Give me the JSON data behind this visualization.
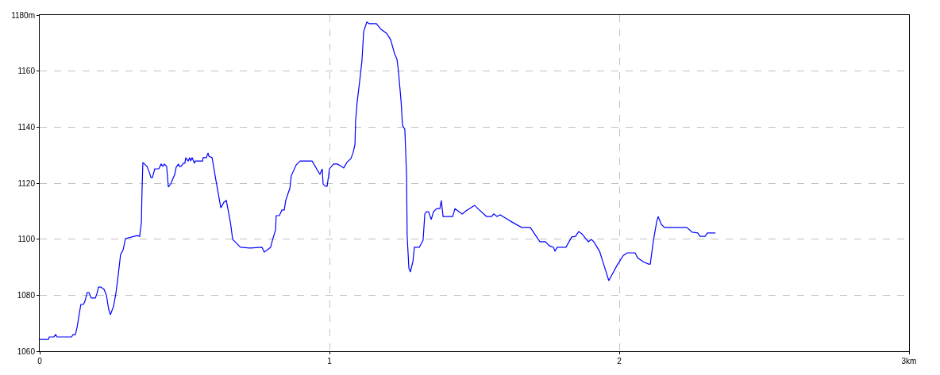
{
  "chart_data": {
    "type": "line",
    "x": [
      0,
      0.03,
      0.033,
      0.049,
      0.055,
      0.06,
      0.11,
      0.115,
      0.123,
      0.129,
      0.137,
      0.142,
      0.151,
      0.156,
      0.164,
      0.17,
      0.178,
      0.192,
      0.197,
      0.203,
      0.211,
      0.222,
      0.23,
      0.238,
      0.244,
      0.255,
      0.263,
      0.271,
      0.279,
      0.288,
      0.296,
      0.326,
      0.337,
      0.345,
      0.351,
      0.353,
      0.356,
      0.37,
      0.378,
      0.384,
      0.389,
      0.397,
      0.411,
      0.419,
      0.425,
      0.43,
      0.438,
      0.444,
      0.452,
      0.466,
      0.471,
      0.479,
      0.482,
      0.488,
      0.496,
      0.501,
      0.504,
      0.512,
      0.518,
      0.521,
      0.526,
      0.534,
      0.537,
      0.562,
      0.564,
      0.575,
      0.581,
      0.584,
      0.595,
      0.608,
      0.625,
      0.636,
      0.644,
      0.658,
      0.666,
      0.674,
      0.693,
      0.726,
      0.767,
      0.775,
      0.786,
      0.797,
      0.803,
      0.814,
      0.816,
      0.827,
      0.836,
      0.844,
      0.849,
      0.858,
      0.863,
      0.868,
      0.885,
      0.899,
      0.94,
      0.967,
      0.975,
      0.978,
      0.986,
      0.992,
      1.0,
      1.014,
      1.027,
      1.041,
      1.049,
      1.06,
      1.074,
      1.082,
      1.088,
      1.09,
      1.096,
      1.104,
      1.112,
      1.118,
      1.129,
      1.137,
      1.162,
      1.178,
      1.197,
      1.211,
      1.225,
      1.233,
      1.238,
      1.247,
      1.252,
      1.26,
      1.266,
      1.268,
      1.274,
      1.279,
      1.288,
      1.293,
      1.31,
      1.323,
      1.329,
      1.334,
      1.342,
      1.351,
      1.359,
      1.37,
      1.381,
      1.386,
      1.392,
      1.425,
      1.433,
      1.458,
      1.471,
      1.501,
      1.512,
      1.542,
      1.559,
      1.567,
      1.578,
      1.589,
      1.616,
      1.63,
      1.663,
      1.693,
      1.726,
      1.745,
      1.759,
      1.773,
      1.778,
      1.786,
      1.816,
      1.836,
      1.849,
      1.86,
      1.871,
      1.893,
      1.904,
      1.912,
      1.932,
      1.964,
      1.992,
      2.014,
      2.027,
      2.055,
      2.063,
      2.082,
      2.101,
      2.107,
      2.118,
      2.129,
      2.134,
      2.145,
      2.156,
      2.233,
      2.252,
      2.271,
      2.279,
      2.296,
      2.304,
      2.332
    ],
    "series": [
      {
        "color": "#0000ff",
        "values": [
          1064.2,
          1064.2,
          1065.1,
          1065.1,
          1065.9,
          1065.1,
          1065.1,
          1065.9,
          1065.9,
          1068.5,
          1073.6,
          1076.7,
          1076.7,
          1077.8,
          1080.9,
          1080.9,
          1079.0,
          1079.0,
          1080.4,
          1082.9,
          1082.9,
          1082.1,
          1080.1,
          1075.0,
          1073.0,
          1076.1,
          1080.7,
          1087.2,
          1094.5,
          1096.2,
          1100.2,
          1101.0,
          1101.3,
          1101.0,
          1106.1,
          1116.9,
          1127.4,
          1126.0,
          1124.0,
          1122.0,
          1122.0,
          1125.1,
          1125.1,
          1126.8,
          1126.0,
          1126.8,
          1126.0,
          1118.6,
          1119.7,
          1123.1,
          1125.7,
          1126.8,
          1126.0,
          1126.0,
          1127.1,
          1127.1,
          1129.1,
          1127.9,
          1129.1,
          1127.9,
          1129.1,
          1127.1,
          1127.9,
          1127.9,
          1129.1,
          1129.1,
          1130.8,
          1129.6,
          1129.1,
          1121.1,
          1111.2,
          1113.2,
          1113.8,
          1106.1,
          1099.9,
          1099.1,
          1097.1,
          1096.8,
          1097.1,
          1095.4,
          1096.2,
          1097.1,
          1099.6,
          1103.3,
          1108.4,
          1108.4,
          1110.4,
          1110.4,
          1113.8,
          1116.6,
          1118.0,
          1122.6,
          1126.5,
          1127.9,
          1127.9,
          1123.1,
          1125.1,
          1119.7,
          1118.9,
          1118.9,
          1125.1,
          1126.8,
          1126.8,
          1126.0,
          1125.4,
          1127.4,
          1128.8,
          1131.0,
          1133.9,
          1142.1,
          1149.4,
          1156.2,
          1163.6,
          1174.1,
          1177.5,
          1176.9,
          1176.9,
          1174.9,
          1173.5,
          1171.2,
          1166.1,
          1164.2,
          1159.9,
          1149.4,
          1140.6,
          1139.3,
          1123.1,
          1101.3,
          1089.7,
          1088.3,
          1092.0,
          1097.1,
          1097.1,
          1099.6,
          1109.0,
          1109.8,
          1109.8,
          1107.0,
          1109.8,
          1110.9,
          1110.9,
          1113.8,
          1108.1,
          1108.1,
          1110.9,
          1109.0,
          1110.1,
          1112.1,
          1110.9,
          1108.1,
          1108.1,
          1109.0,
          1108.1,
          1108.7,
          1107.0,
          1106.1,
          1104.2,
          1104.2,
          1099.1,
          1099.1,
          1097.6,
          1097.1,
          1095.7,
          1097.1,
          1097.1,
          1100.8,
          1101.0,
          1102.7,
          1101.9,
          1099.1,
          1099.9,
          1099.1,
          1095.7,
          1085.2,
          1090.6,
          1094.2,
          1095.1,
          1095.1,
          1093.4,
          1092.0,
          1091.1,
          1091.1,
          1099.6,
          1106.1,
          1108.1,
          1105.3,
          1104.2,
          1104.2,
          1102.5,
          1102.2,
          1101.0,
          1101.0,
          1102.2,
          1102.2
        ]
      }
    ],
    "xlim": [
      0,
      3
    ],
    "xticks": [
      0,
      1,
      2,
      {
        "value": 3,
        "label": "3km"
      }
    ],
    "ylim": [
      1060,
      1180
    ],
    "yticks": [
      1060,
      1080,
      1100,
      1120,
      1140,
      1160,
      {
        "value": 1180,
        "label": "1180m"
      }
    ],
    "grid": true,
    "marker": "none",
    "line_style": "solid"
  }
}
